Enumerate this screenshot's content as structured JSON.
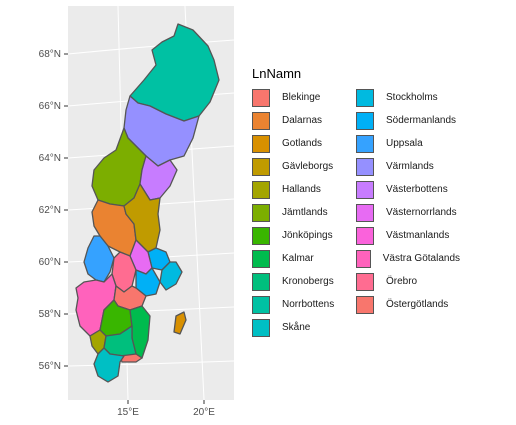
{
  "map": {
    "y_ticks": [
      "68°N",
      "66°N",
      "64°N",
      "62°N",
      "60°N",
      "58°N",
      "56°N"
    ],
    "x_ticks": [
      "15°E",
      "20°E"
    ]
  },
  "legend": {
    "title": "LnNamn",
    "items": [
      {
        "label": "Blekinge",
        "color": "#F8766D"
      },
      {
        "label": "Dalarnas",
        "color": "#EA8331"
      },
      {
        "label": "Gotlands",
        "color": "#D89000"
      },
      {
        "label": "Gävleborgs",
        "color": "#C09B00"
      },
      {
        "label": "Hallands",
        "color": "#A3A500"
      },
      {
        "label": "Jämtlands",
        "color": "#7CAE00"
      },
      {
        "label": "Jönköpings",
        "color": "#39B600"
      },
      {
        "label": "Kalmar",
        "color": "#00BB4E"
      },
      {
        "label": "Kronobergs",
        "color": "#00BF7D"
      },
      {
        "label": "Norrbottens",
        "color": "#00C1A3"
      },
      {
        "label": "Skåne",
        "color": "#00BFC4"
      },
      {
        "label": "Stockholms",
        "color": "#00BAE0"
      },
      {
        "label": "Södermanlands",
        "color": "#00B0F6"
      },
      {
        "label": "Uppsala",
        "color": "#35A2FF"
      },
      {
        "label": "Värmlands",
        "color": "#9590FF"
      },
      {
        "label": "Västerbottens",
        "color": "#C77CFF"
      },
      {
        "label": "Västernorrlands",
        "color": "#E76BF3"
      },
      {
        "label": "Västmanlands",
        "color": "#FA62DB"
      },
      {
        "label": "Västra Götalands",
        "color": "#FF62BC"
      },
      {
        "label": "Örebro",
        "color": "#FF6C91"
      },
      {
        "label": "Östergötlands",
        "color": "#F8766D"
      }
    ]
  }
}
